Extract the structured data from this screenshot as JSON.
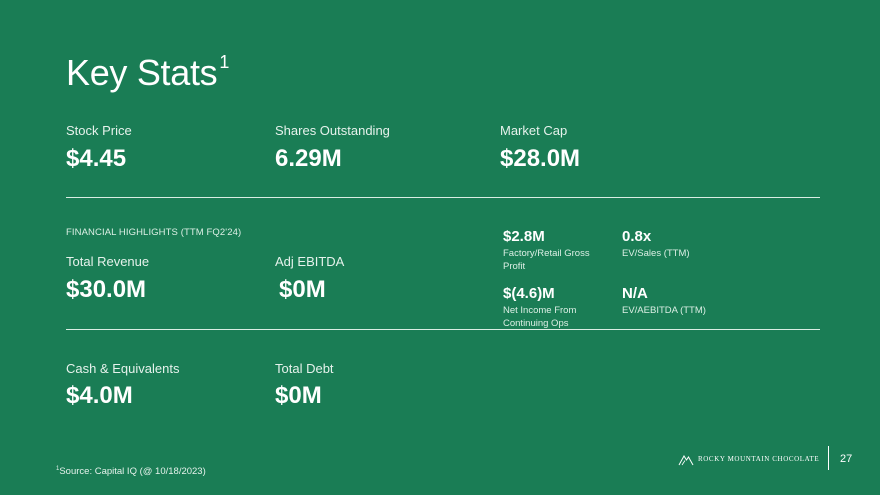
{
  "title": "Key Stats",
  "title_sup": "1",
  "row1": [
    {
      "label": "Stock Price",
      "value": "$4.45"
    },
    {
      "label": "Shares Outstanding",
      "value": "6.29M"
    },
    {
      "label": "Market Cap",
      "value": "$28.0M"
    }
  ],
  "financial_highlights_heading": "FINANCIAL HIGHLIGHTS (TTM FQ2'24)",
  "row2": [
    {
      "label": "Total Revenue",
      "value": "$30.0M"
    },
    {
      "label": "Adj EBITDA",
      "value": "$0M"
    }
  ],
  "metrics": [
    {
      "value": "$2.8M",
      "desc": "Factory/Retail Gross Profit"
    },
    {
      "value": "0.8x",
      "desc": "EV/Sales (TTM)"
    },
    {
      "value": "$(4.6)M",
      "desc": "Net Income From Continuing Ops"
    },
    {
      "value": "N/A",
      "desc": "EV/AEBITDA (TTM)"
    }
  ],
  "row3": [
    {
      "label": "Cash & Equivalents",
      "value": "$4.0M"
    },
    {
      "label": "Total Debt",
      "value": "$0M"
    }
  ],
  "footnote_sup": "1",
  "footnote": "Source: Capital IQ (@ 10/18/2023)",
  "logo_text": "ROCKY MOUNTAIN CHOCOLATE",
  "page_number": "27",
  "colors": {
    "background": "#1a7d55",
    "text": "#ffffff"
  }
}
